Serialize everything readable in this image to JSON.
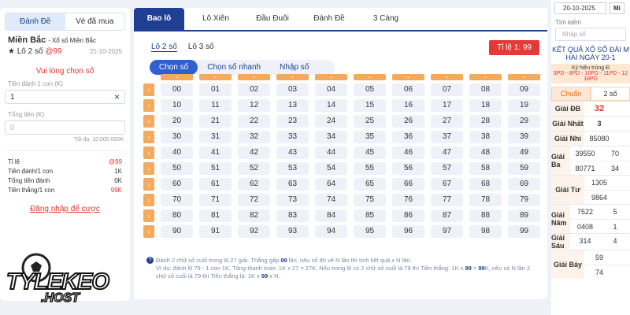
{
  "left_panel": {
    "tabs": [
      "Đánh Đề",
      "Vé đã mua"
    ],
    "region": "Miền Bắc",
    "region_sub": "- Xổ số Miền Bắc",
    "bet_type": "★ Lô 2 số",
    "odds": "@99",
    "date": "21-10-2025",
    "prompt": "Vui lòng chọn số",
    "stake_label": "Tiền đánh 1 con (K)",
    "stake_value": "1",
    "total_label": "Tổng tiền (K)",
    "total_placeholder": "0",
    "max": "Tối đa: 10.000.000K",
    "summary": [
      [
        "Tỉ lệ",
        "@99"
      ],
      [
        "Tiền đánh/1 con",
        "1K"
      ],
      [
        "Tổng tiền đánh",
        "0K"
      ],
      [
        "Tiền thắng/1 con",
        "99K"
      ]
    ],
    "login": "Đăng nhập để cược"
  },
  "logo": {
    "main": "TYLEKEO",
    "sub": ".HOST"
  },
  "main_panel": {
    "tabs": [
      "Bao lô",
      "Lô Xiên",
      "Đầu Đuôi",
      "Đánh Đề",
      "3 Càng"
    ],
    "sub_tabs": [
      "Lô 2 số",
      "Lô 3 số"
    ],
    "odds_badge": "Tỉ lệ 1: 99",
    "modes": [
      "Chọn số",
      "Chọn số nhanh",
      "Nhập số"
    ],
    "numbers": [
      [
        "00",
        "01",
        "02",
        "03",
        "04",
        "05",
        "06",
        "07",
        "08",
        "09"
      ],
      [
        "10",
        "11",
        "12",
        "13",
        "14",
        "15",
        "16",
        "17",
        "18",
        "19"
      ],
      [
        "20",
        "21",
        "22",
        "23",
        "24",
        "25",
        "26",
        "27",
        "28",
        "29"
      ],
      [
        "30",
        "31",
        "32",
        "33",
        "34",
        "35",
        "36",
        "37",
        "38",
        "39"
      ],
      [
        "40",
        "41",
        "42",
        "43",
        "44",
        "45",
        "46",
        "47",
        "48",
        "49"
      ],
      [
        "50",
        "51",
        "52",
        "53",
        "54",
        "55",
        "56",
        "57",
        "58",
        "59"
      ],
      [
        "60",
        "61",
        "62",
        "63",
        "64",
        "65",
        "66",
        "67",
        "68",
        "69"
      ],
      [
        "70",
        "71",
        "72",
        "73",
        "74",
        "75",
        "76",
        "77",
        "78",
        "79"
      ],
      [
        "80",
        "81",
        "82",
        "83",
        "84",
        "85",
        "86",
        "87",
        "88",
        "89"
      ],
      [
        "90",
        "91",
        "92",
        "93",
        "94",
        "95",
        "96",
        "97",
        "98",
        "99"
      ]
    ],
    "note": {
      "line1": [
        "Đánh 2 chữ số cuối trong lô 27 giải. Thắng gấp ",
        "99",
        " lần, nếu số đó về N lần thì tính kết quả x N lần."
      ],
      "line2": [
        "Ví dụ: đánh lô 79 - 1 con 1K, Tổng thanh toán: 1K x 27 = 27K. Nếu trong lô có 2 chữ số cuối là 79 thì Tiền thắng: 1K x ",
        "99",
        " = ",
        "99",
        "K, nếu có N lần 2 chữ số cuối là 79 thì Tiền thắng là: 1K x ",
        "99",
        " x N."
      ]
    }
  },
  "right_panel": {
    "date": "20-10-2025",
    "region_button": "Mi",
    "search_label": "Tìm kiếm",
    "search_placeholder": "Nhập số",
    "title_line1": "KẾT QUẢ XỔ SỐ ĐÀI M",
    "title_line2": "HAI NGÀY 20-1",
    "code_label": "Ký hiệu trúng Đ",
    "codes_line1": "3PD - 8PD - 10PD - 11PD - 12",
    "codes_line2": "18PD",
    "view_tabs": [
      "Chuẩn",
      "2 số"
    ],
    "results": [
      {
        "label": "Giải ĐB",
        "rows": [
          [
            "32"
          ]
        ]
      },
      {
        "label": "Giải Nhất",
        "rows": [
          [
            "3"
          ]
        ]
      },
      {
        "label": "Giải Nhì",
        "rows": [
          [
            "85080"
          ]
        ]
      },
      {
        "label": "Giải Ba",
        "rows": [
          [
            "39550",
            "70"
          ],
          [
            "80771",
            "34"
          ]
        ]
      },
      {
        "label": "Giải Tư",
        "rows": [
          [
            "1305"
          ],
          [
            "9864"
          ]
        ]
      },
      {
        "label": "Giải Năm",
        "rows": [
          [
            "7522",
            "5"
          ],
          [
            "0408",
            "1"
          ]
        ]
      },
      {
        "label": "Giải Sáu",
        "rows": [
          [
            "314",
            "4"
          ]
        ]
      },
      {
        "label": "Giải Bảy",
        "rows": [
          [
            "59"
          ],
          [
            "74"
          ]
        ]
      }
    ]
  }
}
